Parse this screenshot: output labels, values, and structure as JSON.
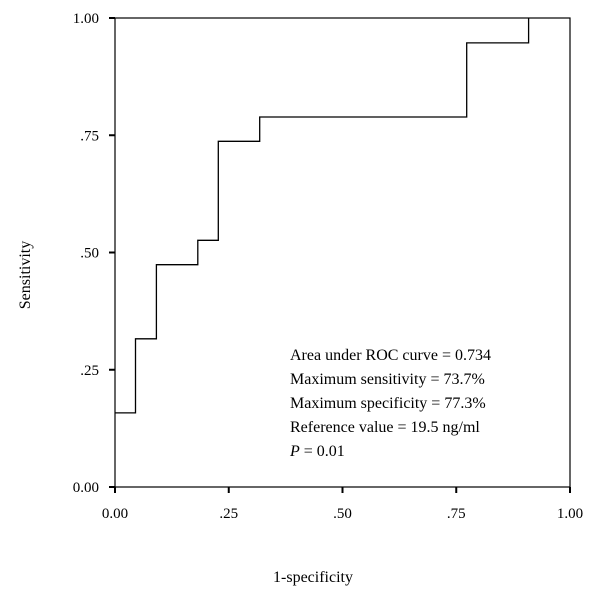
{
  "chart_data": {
    "type": "line",
    "title": "",
    "xlabel": "1-specificity",
    "ylabel": "Sensitivity",
    "xlim": [
      0,
      1
    ],
    "ylim": [
      0,
      1
    ],
    "grid": false,
    "x_ticks": [
      0,
      0.25,
      0.5,
      0.75,
      1
    ],
    "x_tick_labels": [
      "0.00",
      ".25",
      ".50",
      ".75",
      "1.00"
    ],
    "y_ticks": [
      0,
      0.25,
      0.5,
      0.75,
      1
    ],
    "y_tick_labels": [
      "0.00",
      ".25",
      ".50",
      ".75",
      "1.00"
    ],
    "series": [
      {
        "color": "#000000",
        "x": [
          0.0,
          0.045,
          0.045,
          0.091,
          0.091,
          0.182,
          0.182,
          0.227,
          0.227,
          0.318,
          0.318,
          0.773,
          0.773,
          0.909,
          0.909
        ],
        "y": [
          0.158,
          0.158,
          0.316,
          0.316,
          0.474,
          0.474,
          0.526,
          0.526,
          0.737,
          0.737,
          0.789,
          0.789,
          0.947,
          0.947,
          1.0
        ]
      }
    ],
    "annotations": [
      "Area under ROC curve = 0.734",
      "Maximum sensitivity = 73.7%",
      "Maximum specificity = 77.3%",
      "Reference value = 19.5 ng/ml"
    ],
    "p_value": {
      "label": "P",
      "rest": " = 0.01"
    }
  }
}
